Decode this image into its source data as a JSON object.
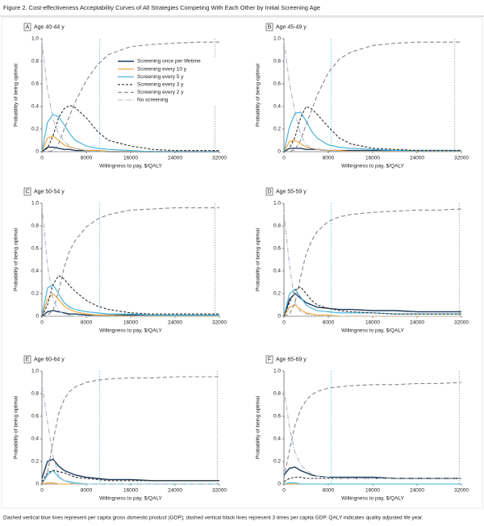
{
  "title": "Figure 2. Cost-effectiveness Acceptability Curves of All Strategies Competing With Each Other by Initial Screening Age",
  "footnote": "Dashed vertical blue lines represent per capita gross domestic product (GDP); dashed vertical black lines represent 3 times per capita GDP. QALY indicates quality adjusted life year.",
  "chart_data": [
    {
      "type": "line",
      "label": "A",
      "title": "Age 40-44 y",
      "xlabel": "Willingness to pay, $/QALY",
      "ylabel": "Probability of being optimal",
      "x": [
        0,
        1000,
        2000,
        3000,
        4000,
        5000,
        6000,
        8000,
        10000,
        12000,
        16000,
        20000,
        24000,
        28000,
        32000
      ],
      "xlim": [
        0,
        32000
      ],
      "xticks": [
        0,
        8000,
        16000,
        24000,
        32000
      ],
      "ylim": [
        0,
        1
      ],
      "yticks": [
        0,
        0.2,
        0.4,
        0.6,
        0.8,
        {
          "value": 1,
          "label": "1.0"
        }
      ],
      "vlines": [
        {
          "x": 10400,
          "color": "#5bc8e8"
        },
        {
          "x": 31200,
          "color": "#999999"
        }
      ],
      "legend": "upper right",
      "series": [
        {
          "name": "Screening once per lifetime",
          "color": "#1f3b5c",
          "dash": "none",
          "values": [
            0,
            0.04,
            0.04,
            0.03,
            0.02,
            0.02,
            0.01,
            0.01,
            0.01,
            0,
            0,
            0,
            0,
            0,
            0
          ]
        },
        {
          "name": "Screening every 10 y",
          "color": "#f0a030",
          "dash": "none",
          "values": [
            0,
            0.12,
            0.14,
            0.1,
            0.06,
            0.04,
            0.03,
            0.01,
            0.01,
            0,
            0,
            0,
            0,
            0,
            0
          ]
        },
        {
          "name": "Screening every 5 y",
          "color": "#3bb0d8",
          "dash": "none",
          "values": [
            0,
            0.26,
            0.33,
            0.31,
            0.24,
            0.16,
            0.1,
            0.05,
            0.03,
            0.02,
            0.01,
            0,
            0,
            0,
            0
          ]
        },
        {
          "name": "Screening every 3 y",
          "color": "#333333",
          "dash": "3,2",
          "values": [
            0,
            0.03,
            0.14,
            0.3,
            0.38,
            0.41,
            0.39,
            0.3,
            0.18,
            0.1,
            0.05,
            0.02,
            0.01,
            0.01,
            0.01
          ]
        },
        {
          "name": "Screening every 2 y",
          "color": "#888888",
          "dash": "5,3",
          "values": [
            0,
            0,
            0.01,
            0.07,
            0.2,
            0.32,
            0.44,
            0.63,
            0.77,
            0.86,
            0.93,
            0.95,
            0.96,
            0.97,
            0.97
          ]
        },
        {
          "name": "No screening",
          "color": "#a8b8c8",
          "dash": "6,2,1,2",
          "values": [
            0.98,
            0.55,
            0.29,
            0.16,
            0.09,
            0.05,
            0.03,
            0.01,
            0,
            0,
            0,
            0,
            0,
            0,
            0
          ]
        }
      ]
    },
    {
      "type": "line",
      "label": "B",
      "title": "Age 45-49 y",
      "xlabel": "Willingness to pay, $/QALY",
      "ylabel": "Probability of being optimal",
      "x": [
        0,
        1000,
        2000,
        3000,
        4000,
        5000,
        6000,
        8000,
        10000,
        12000,
        16000,
        20000,
        24000,
        28000,
        32000
      ],
      "xlim": [
        0,
        32000
      ],
      "xticks": [
        0,
        8000,
        16000,
        24000,
        32000
      ],
      "ylim": [
        0,
        1
      ],
      "yticks": [
        0,
        0.2,
        0.4,
        0.6,
        0.8,
        {
          "value": 1,
          "label": "1.0"
        }
      ],
      "vlines": [
        {
          "x": 8500,
          "color": "#5bc8e8"
        },
        {
          "x": 30800,
          "color": "#999999"
        }
      ],
      "series": [
        {
          "color": "#1f3b5c",
          "dash": "none",
          "values": [
            0,
            0.03,
            0.03,
            0.03,
            0.02,
            0.02,
            0.02,
            0.01,
            0.01,
            0.01,
            0.01,
            0.01,
            0.01,
            0.01,
            0.01
          ]
        },
        {
          "color": "#f0a030",
          "dash": "none",
          "values": [
            0,
            0.09,
            0.1,
            0.07,
            0.04,
            0.03,
            0.02,
            0.01,
            0.01,
            0,
            0,
            0,
            0,
            0,
            0
          ]
        },
        {
          "color": "#3bb0d8",
          "dash": "none",
          "values": [
            0,
            0.22,
            0.34,
            0.35,
            0.27,
            0.18,
            0.12,
            0.06,
            0.04,
            0.03,
            0.02,
            0.01,
            0.01,
            0.01,
            0.01
          ]
        },
        {
          "color": "#333333",
          "dash": "3,2",
          "values": [
            0,
            0.03,
            0.13,
            0.3,
            0.4,
            0.38,
            0.33,
            0.22,
            0.12,
            0.07,
            0.03,
            0.02,
            0.01,
            0.01,
            0.01
          ]
        },
        {
          "color": "#888888",
          "dash": "5,3",
          "values": [
            0,
            0,
            0.02,
            0.1,
            0.24,
            0.37,
            0.5,
            0.7,
            0.82,
            0.88,
            0.94,
            0.96,
            0.97,
            0.97,
            0.97
          ]
        },
        {
          "color": "#a8b8c8",
          "dash": "6,2,1,2",
          "values": [
            0.98,
            0.6,
            0.35,
            0.15,
            0.06,
            0.03,
            0.02,
            0.01,
            0,
            0,
            0,
            0,
            0,
            0,
            0
          ]
        }
      ]
    },
    {
      "type": "line",
      "label": "C",
      "title": "Age 50-54 y",
      "xlabel": "Willingness to pay, $/QALY",
      "ylabel": "Probability of being optimal",
      "x": [
        0,
        1000,
        2000,
        3000,
        4000,
        5000,
        6000,
        8000,
        10000,
        12000,
        16000,
        20000,
        24000,
        28000,
        32000
      ],
      "xlim": [
        0,
        32000
      ],
      "xticks": [
        0,
        8000,
        16000,
        24000,
        32000
      ],
      "ylim": [
        0,
        1
      ],
      "yticks": [
        0,
        0.2,
        0.4,
        0.6,
        0.8,
        {
          "value": 1,
          "label": "1.0"
        }
      ],
      "vlines": [
        {
          "x": 10400,
          "color": "#5bc8e8"
        },
        {
          "x": 31200,
          "color": "#999999"
        }
      ],
      "series": [
        {
          "color": "#1f3b5c",
          "dash": "none",
          "values": [
            0,
            0.04,
            0.05,
            0.04,
            0.03,
            0.02,
            0.02,
            0.01,
            0.01,
            0.01,
            0.01,
            0.01,
            0.01,
            0.01,
            0.01
          ]
        },
        {
          "color": "#f0a030",
          "dash": "none",
          "values": [
            0,
            0.15,
            0.2,
            0.15,
            0.09,
            0.06,
            0.04,
            0.02,
            0.01,
            0.01,
            0,
            0,
            0,
            0,
            0
          ]
        },
        {
          "color": "#3bb0d8",
          "dash": "none",
          "values": [
            0,
            0.25,
            0.28,
            0.2,
            0.12,
            0.08,
            0.06,
            0.04,
            0.03,
            0.02,
            0.02,
            0.01,
            0.01,
            0.01,
            0.01
          ]
        },
        {
          "color": "#333333",
          "dash": "3,2",
          "values": [
            0,
            0.1,
            0.28,
            0.36,
            0.33,
            0.27,
            0.22,
            0.14,
            0.09,
            0.06,
            0.03,
            0.02,
            0.02,
            0.02,
            0.02
          ]
        },
        {
          "color": "#888888",
          "dash": "5,3",
          "values": [
            0,
            0.01,
            0.05,
            0.22,
            0.43,
            0.58,
            0.67,
            0.79,
            0.86,
            0.9,
            0.94,
            0.95,
            0.96,
            0.96,
            0.96
          ]
        },
        {
          "color": "#a8b8c8",
          "dash": "6,2,1,2",
          "values": [
            0.98,
            0.45,
            0.15,
            0.05,
            0.02,
            0.01,
            0,
            0,
            0,
            0,
            0,
            0,
            0,
            0,
            0
          ]
        }
      ]
    },
    {
      "type": "line",
      "label": "D",
      "title": "Age 55-59 y",
      "xlabel": "Willingness to pay, $/QALY",
      "ylabel": "Probability of being optimal",
      "x": [
        0,
        1000,
        2000,
        3000,
        4000,
        5000,
        6000,
        8000,
        10000,
        12000,
        16000,
        20000,
        24000,
        28000,
        32000
      ],
      "xlim": [
        0,
        32000
      ],
      "xticks": [
        0,
        8000,
        16000,
        24000,
        32000
      ],
      "ylim": [
        0,
        1
      ],
      "yticks": [
        0,
        0.2,
        0.4,
        0.6,
        0.8,
        {
          "value": 1,
          "label": "1.0"
        }
      ],
      "vlines": [
        {
          "x": 8500,
          "color": "#5bc8e8"
        },
        {
          "x": 31600,
          "color": "#999999"
        }
      ],
      "series": [
        {
          "color": "#1f3b5c",
          "dash": "none",
          "values": [
            0,
            0.15,
            0.2,
            0.16,
            0.12,
            0.1,
            0.08,
            0.07,
            0.06,
            0.06,
            0.05,
            0.05,
            0.04,
            0.04,
            0.04
          ]
        },
        {
          "color": "#f0a030",
          "dash": "none",
          "values": [
            0,
            0.08,
            0.1,
            0.06,
            0.03,
            0.02,
            0.01,
            0.01,
            0,
            0,
            0,
            0,
            0,
            0,
            0
          ]
        },
        {
          "color": "#3bb0d8",
          "dash": "none",
          "values": [
            0,
            0.2,
            0.24,
            0.17,
            0.1,
            0.07,
            0.05,
            0.04,
            0.03,
            0.03,
            0.03,
            0.02,
            0.02,
            0.02,
            0.02
          ]
        },
        {
          "color": "#333333",
          "dash": "3,2",
          "values": [
            0,
            0.12,
            0.23,
            0.26,
            0.2,
            0.14,
            0.1,
            0.07,
            0.05,
            0.04,
            0.03,
            0.02,
            0.02,
            0.02,
            0.02
          ]
        },
        {
          "color": "#888888",
          "dash": "5,3",
          "values": [
            0,
            0.02,
            0.12,
            0.35,
            0.55,
            0.67,
            0.75,
            0.84,
            0.88,
            0.9,
            0.92,
            0.93,
            0.94,
            0.94,
            0.95
          ]
        },
        {
          "color": "#a8b8c8",
          "dash": "6,2,1,2",
          "values": [
            0.92,
            0.45,
            0.12,
            0.04,
            0.02,
            0.01,
            0,
            0,
            0,
            0,
            0,
            0,
            0,
            0,
            0
          ]
        }
      ]
    },
    {
      "type": "line",
      "label": "E",
      "title": "Age 60-64 y",
      "xlabel": "Willingness to pay, $/QALY",
      "ylabel": "Probability of being optimal",
      "x": [
        0,
        1000,
        2000,
        3000,
        4000,
        5000,
        6000,
        8000,
        10000,
        12000,
        16000,
        20000,
        24000,
        28000,
        32000
      ],
      "xlim": [
        0,
        32000
      ],
      "xticks": [
        0,
        8000,
        16000,
        24000,
        32000
      ],
      "ylim": [
        0,
        1
      ],
      "yticks": [
        0,
        0.2,
        0.4,
        0.6,
        0.8,
        {
          "value": 1,
          "label": "1.0"
        }
      ],
      "vlines": [
        {
          "x": 10400,
          "color": "#5bc8e8"
        },
        {
          "x": 31600,
          "color": "#999999"
        }
      ],
      "series": [
        {
          "color": "#1f3b5c",
          "dash": "none",
          "values": [
            0.05,
            0.2,
            0.22,
            0.16,
            0.12,
            0.1,
            0.08,
            0.06,
            0.05,
            0.04,
            0.04,
            0.03,
            0.03,
            0.03,
            0.03
          ]
        },
        {
          "color": "#f0a030",
          "dash": "none",
          "values": [
            0,
            0.01,
            0.01,
            0,
            0,
            0,
            0,
            0,
            0,
            0,
            0,
            0,
            0,
            0,
            0
          ]
        },
        {
          "color": "#3bb0d8",
          "dash": "none",
          "values": [
            0,
            0.08,
            0.12,
            0.06,
            0.03,
            0.02,
            0.01,
            0,
            0,
            0,
            0,
            0,
            0,
            0,
            0
          ]
        },
        {
          "color": "#333333",
          "dash": "3,2",
          "values": [
            0.02,
            0.1,
            0.12,
            0.11,
            0.1,
            0.08,
            0.06,
            0.05,
            0.04,
            0.03,
            0.03,
            0.03,
            0.03,
            0.03,
            0.03
          ]
        },
        {
          "color": "#888888",
          "dash": "5,3",
          "values": [
            0,
            0.1,
            0.38,
            0.62,
            0.75,
            0.82,
            0.86,
            0.9,
            0.92,
            0.93,
            0.94,
            0.94,
            0.95,
            0.95,
            0.95
          ]
        },
        {
          "color": "#a8b8c8",
          "dash": "6,2,1,2",
          "values": [
            0.88,
            0.55,
            0.25,
            0.08,
            0.03,
            0.01,
            0,
            0,
            0,
            0,
            0,
            0,
            0,
            0,
            0
          ]
        }
      ]
    },
    {
      "type": "line",
      "label": "F",
      "title": "Age 65-69 y",
      "xlabel": "Willingness to pay, $/QALY",
      "ylabel": "Probability of being optimal",
      "x": [
        0,
        1000,
        2000,
        3000,
        4000,
        5000,
        6000,
        8000,
        10000,
        12000,
        16000,
        20000,
        24000,
        28000,
        32000
      ],
      "xlim": [
        0,
        32000
      ],
      "xticks": [
        0,
        8000,
        16000,
        24000,
        32000
      ],
      "ylim": [
        0,
        1
      ],
      "yticks": [
        0,
        0.2,
        0.4,
        0.6,
        0.8,
        {
          "value": 1,
          "label": "1.0"
        }
      ],
      "vlines": [
        {
          "x": 8500,
          "color": "#5bc8e8"
        },
        {
          "x": 31600,
          "color": "#999999"
        }
      ],
      "series": [
        {
          "color": "#1f3b5c",
          "dash": "none",
          "values": [
            0.08,
            0.14,
            0.15,
            0.12,
            0.1,
            0.08,
            0.07,
            0.06,
            0.06,
            0.06,
            0.06,
            0.05,
            0.05,
            0.05,
            0.05
          ]
        },
        {
          "color": "#f0a030",
          "dash": "none",
          "values": [
            0,
            0,
            0,
            0,
            0,
            0,
            0,
            0,
            0,
            0,
            0,
            0,
            0,
            0,
            0
          ]
        },
        {
          "color": "#3bb0d8",
          "dash": "none",
          "values": [
            0,
            0.01,
            0.01,
            0,
            0,
            0,
            0,
            0,
            0,
            0,
            0,
            0,
            0,
            0,
            0
          ]
        },
        {
          "color": "#333333",
          "dash": "3,2",
          "values": [
            0.02,
            0.05,
            0.06,
            0.06,
            0.05,
            0.05,
            0.05,
            0.05,
            0.05,
            0.05,
            0.05,
            0.05,
            0.05,
            0.05,
            0.05
          ]
        },
        {
          "color": "#888888",
          "dash": "5,3",
          "values": [
            0.05,
            0.3,
            0.52,
            0.66,
            0.74,
            0.79,
            0.82,
            0.85,
            0.86,
            0.87,
            0.88,
            0.88,
            0.89,
            0.89,
            0.9
          ]
        },
        {
          "color": "#a8b8c8",
          "dash": "6,2,1,2",
          "values": [
            0.85,
            0.5,
            0.28,
            0.17,
            0.12,
            0.09,
            0.07,
            0.06,
            0.05,
            0.05,
            0.05,
            0.05,
            0.05,
            0.05,
            0.05
          ]
        }
      ]
    }
  ]
}
